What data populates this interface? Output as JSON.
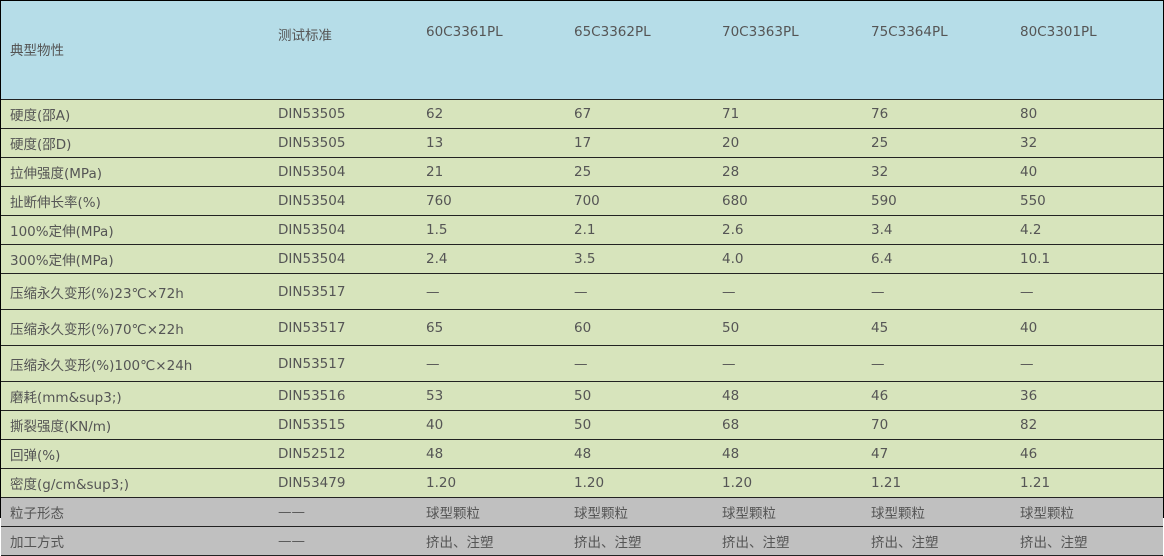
{
  "header": [
    "典型物性",
    "测试标准",
    "60C3361PL",
    "65C3362PL",
    "70C3363PL",
    "75C3364PL",
    "80C3301PL"
  ],
  "rows": [
    {
      "cells": [
        "硬度(邵A)",
        "DIN53505",
        "62",
        "67",
        "71",
        "76",
        "80"
      ],
      "style": "g"
    },
    {
      "cells": [
        "硬度(邵D)",
        "DIN53505",
        "13",
        "17",
        "20",
        "25",
        "32"
      ],
      "style": "g"
    },
    {
      "cells": [
        "拉伸强度(MPa)",
        "DIN53504",
        "21",
        "25",
        "28",
        "32",
        "40"
      ],
      "style": "g"
    },
    {
      "cells": [
        "扯断伸长率(%)",
        "DIN53504",
        "760",
        "700",
        "680",
        "590",
        "550"
      ],
      "style": "g"
    },
    {
      "cells": [
        "100%定伸(MPa)",
        "DIN53504",
        "1.5",
        "2.1",
        "2.6",
        "3.4",
        "4.2"
      ],
      "style": "g"
    },
    {
      "cells": [
        "300%定伸(MPa)",
        "DIN53504",
        "2.4",
        "3.5",
        "4.0",
        "6.4",
        "10.1"
      ],
      "style": "g"
    },
    {
      "cells": [
        "压缩永久变形(%)23℃×72h",
        "DIN53517",
        "—",
        "—",
        "—",
        "—",
        "—"
      ],
      "style": "g tall"
    },
    {
      "cells": [
        "压缩永久变形(%)70℃×22h",
        "DIN53517",
        "65",
        "60",
        "50",
        "45",
        "40"
      ],
      "style": "g tall"
    },
    {
      "cells": [
        "压缩永久变形(%)100℃×24h",
        "DIN53517",
        "—",
        "—",
        "—",
        "—",
        "—"
      ],
      "style": "g tall"
    },
    {
      "cells": [
        "磨耗(mm&sup3;)",
        "DIN53516",
        "53",
        "50",
        "48",
        "46",
        "36"
      ],
      "style": "g"
    },
    {
      "cells": [
        "撕裂强度(KN/m)",
        "DIN53515",
        "40",
        "50",
        "68",
        "70",
        "82"
      ],
      "style": "g"
    },
    {
      "cells": [
        "回弹(%)",
        "DIN52512",
        "48",
        "48",
        "48",
        "47",
        "46"
      ],
      "style": "g"
    },
    {
      "cells": [
        "密度(g/cm&sup3;)",
        "DIN53479",
        "1.20",
        "1.20",
        "1.20",
        "1.21",
        "1.21"
      ],
      "style": "g"
    },
    {
      "cells": [
        "粒子形态",
        "——",
        "球型颗粒",
        "球型颗粒",
        "球型颗粒",
        "球型颗粒",
        "球型颗粒"
      ],
      "style": "gr"
    },
    {
      "cells": [
        "加工方式",
        "——",
        "挤出、注塑",
        "挤出、注塑",
        "挤出、注塑",
        "挤出、注塑",
        "挤出、注塑"
      ],
      "style": "gr"
    }
  ],
  "colors": {
    "header_bg": "#b6dde8",
    "row_bg": "#d7e4bc",
    "footer_bg": "#c0c0c0"
  }
}
